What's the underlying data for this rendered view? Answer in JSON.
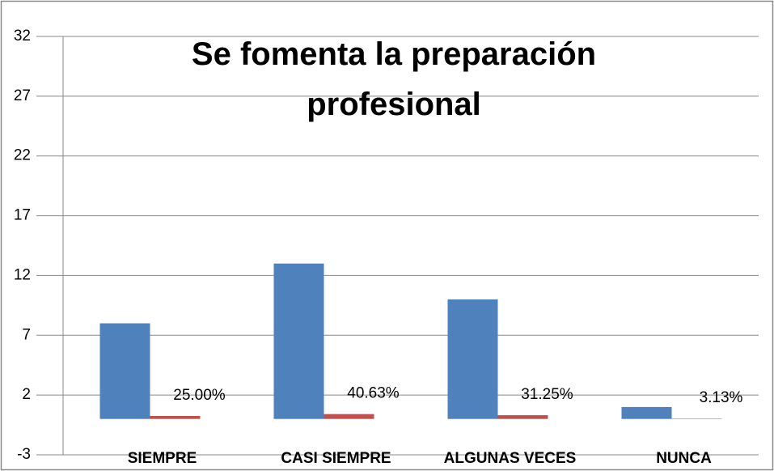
{
  "chart_data": {
    "type": "bar",
    "title": "Se fomenta la preparación profesional",
    "categories": [
      "SIEMPRE",
      "CASI SIEMPRE",
      "ALGUNAS VECES",
      "NUNCA"
    ],
    "series": [
      {
        "color": "#4f81bd",
        "values": [
          8,
          13,
          10,
          1
        ]
      },
      {
        "color": "#c0504d",
        "values": [
          0.25,
          0.4063,
          0.3125,
          0.0313
        ],
        "value_labels": [
          "25.00%",
          "40.63%",
          "31.25%",
          "3.13%"
        ]
      }
    ],
    "ylim": [
      -3,
      32
    ],
    "yticks": [
      -3,
      2,
      7,
      12,
      17,
      22,
      27,
      32
    ],
    "grid": true
  }
}
